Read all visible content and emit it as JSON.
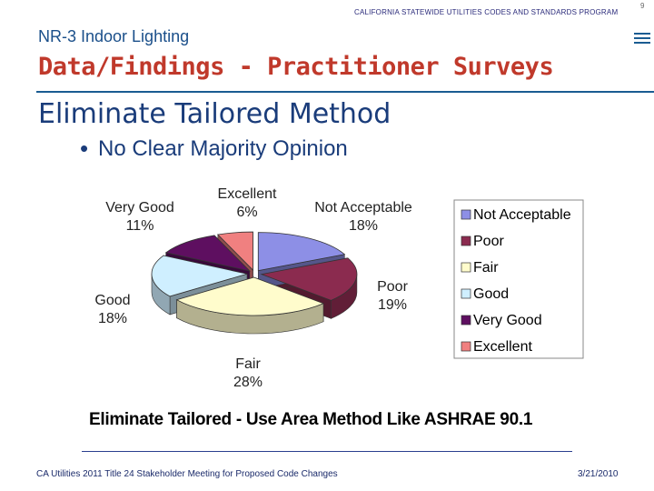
{
  "header": {
    "program": "CALIFORNIA STATEWIDE UTILITIES CODES AND STANDARDS PROGRAM",
    "page_number": "9"
  },
  "subtitle": "NR-3 Indoor Lighting",
  "title": "Data/Findings - Practitioner Surveys",
  "heading": "Eliminate Tailored Method",
  "bullet": "No Clear Majority Opinion",
  "chart_data": {
    "type": "pie",
    "title": "",
    "categories": [
      "Not Acceptable",
      "Poor",
      "Fair",
      "Good",
      "Very Good",
      "Excellent"
    ],
    "values": [
      18,
      19,
      28,
      18,
      11,
      6
    ],
    "value_labels": [
      "18%",
      "19%",
      "28%",
      "18%",
      "11%",
      "6%"
    ],
    "colors": [
      "#8d8fe6",
      "#8b2b4f",
      "#fffccc",
      "#cfefff",
      "#5e0f60",
      "#f08080"
    ],
    "legend_position": "right"
  },
  "caption": "Eliminate Tailored  - Use Area Method Like ASHRAE 90.1",
  "footer": {
    "left": "CA Utilities 2011 Title 24 Stakeholder Meeting for Proposed Code Changes",
    "right": "3/21/2010"
  }
}
